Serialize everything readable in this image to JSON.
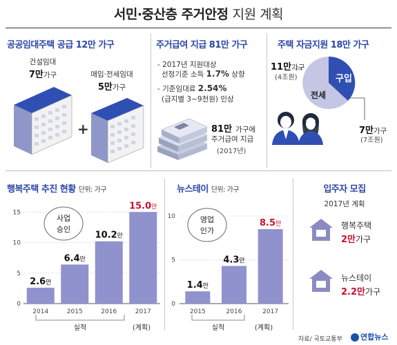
{
  "title": {
    "bold": "서민·중산층 주거안정",
    "light": "지원 계획"
  },
  "top": {
    "public_rental": {
      "title": "공공임대주택 공급 12만 가구",
      "construction_label": "건설임대",
      "construction_value": "7만",
      "construction_unit": "가구",
      "purchase_label": "매입·전세임대",
      "purchase_value": "5만",
      "purchase_unit": "가구",
      "plus": "+"
    },
    "housing_benefit": {
      "title": "주거급여 지급 81만 가구",
      "bullet1_line1": "- 2017년 지원대상",
      "bullet1_line2": "선정기준 소득",
      "bullet1_value": "1.7%",
      "bullet1_suffix": "상향",
      "bullet2_line1": "- 기준임대료",
      "bullet2_value": "2.54%",
      "bullet2_line2": "(급지별 3~9천원) 인상",
      "money_value": "81만",
      "money_line1": "가구에",
      "money_line2": "주거급여 지급",
      "money_line3": "(2017년)"
    },
    "housing_fund": {
      "title": "주택 자금지원 18만 가구",
      "jeonse_value": "11만",
      "jeonse_unit": "가구",
      "jeonse_amount": "(4조원)",
      "jeonse_label": "전세",
      "purchase_label": "구입",
      "purchase_value": "7만",
      "purchase_unit": "가구",
      "purchase_amount": "(7조원)",
      "colors": {
        "jeonse": "#c5c6e4",
        "purchase": "#2f4fb3"
      }
    }
  },
  "bottom": {
    "happy": {
      "title": "행복주택 추진 현황",
      "unit": "단위: 가구",
      "bubble_line1": "사업",
      "bubble_line2": "승인",
      "actual_label": "실적",
      "plan_label": "(계획)"
    },
    "newstay": {
      "title": "뉴스테이",
      "unit": "단위: 가구",
      "bubble_line1": "영업",
      "bubble_line2": "인가",
      "actual_label": "실적",
      "plan_label": "(계획)"
    },
    "recruit": {
      "title": "입주자 모집",
      "plan": "2017년 계획",
      "happy_label": "행복주택",
      "happy_value": "2만",
      "happy_unit": "가구",
      "newstay_label": "뉴스테이",
      "newstay_value": "2.2만",
      "newstay_unit": "가구"
    }
  },
  "footer": {
    "source": "자료/ 국토교통부",
    "logo": "연합뉴스"
  },
  "chart_data": [
    {
      "type": "bar",
      "title": "행복주택 추진 현황",
      "categories": [
        "2014",
        "2015",
        "2016",
        "2017"
      ],
      "values": [
        2.6,
        6.4,
        10.2,
        15.0
      ],
      "value_labels": [
        "2.6",
        "6.4",
        "10.2",
        "15.0"
      ],
      "value_unit": "만",
      "highlight_index": 3,
      "yticks": [
        0,
        5,
        10,
        15
      ],
      "ylim": [
        0,
        16.5
      ],
      "grid": true,
      "colors": {
        "bar": "#9092ce",
        "label": "#111111",
        "highlight_label": "#c8102e"
      }
    },
    {
      "type": "bar",
      "title": "뉴스테이",
      "categories": [
        "2015",
        "2016",
        "2017"
      ],
      "values": [
        1.4,
        4.3,
        8.5
      ],
      "value_labels": [
        "1.4",
        "4.3",
        "8.5"
      ],
      "value_unit": "만",
      "highlight_index": 2,
      "yticks": [
        0,
        5,
        10
      ],
      "ylim": [
        0,
        11.5
      ],
      "grid": true,
      "colors": {
        "bar": "#9092ce",
        "label": "#111111",
        "highlight_label": "#c8102e"
      }
    }
  ]
}
